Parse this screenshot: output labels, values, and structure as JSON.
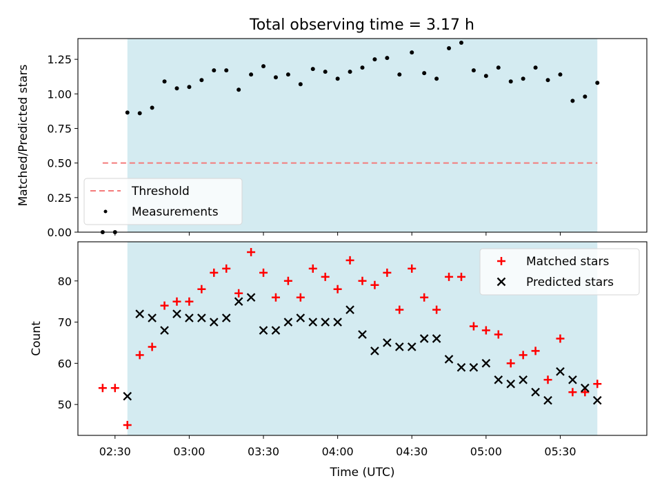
{
  "title": "Total observing time = 3.17 h",
  "colors": {
    "shade": "#d4ebf1",
    "threshold": "#f47a7a",
    "measurement": "#000000",
    "matched": "#ff0000",
    "predicted": "#000000"
  },
  "chart_data": [
    {
      "type": "scatter",
      "ylabel": "Matched/Predicted stars",
      "xlim": [
        "02:15",
        "06:05"
      ],
      "ylim": [
        0,
        1.4
      ],
      "y_ticks": [
        0.0,
        0.25,
        0.5,
        0.75,
        1.0,
        1.25
      ],
      "y_tick_labels": [
        "0.00",
        "0.25",
        "0.50",
        "0.75",
        "1.00",
        "1.25"
      ],
      "shaded_interval": [
        "02:35",
        "05:45"
      ],
      "legend": {
        "position": "lower-left",
        "items": [
          "Threshold",
          "Measurements"
        ]
      },
      "threshold": {
        "name": "Threshold",
        "y": 0.5,
        "x": [
          "02:25",
          "05:45"
        ],
        "style": "dashed"
      },
      "series": [
        {
          "name": "Measurements",
          "x": [
            "02:25",
            "02:30",
            "02:35",
            "02:40",
            "02:45",
            "02:50",
            "02:55",
            "03:00",
            "03:05",
            "03:10",
            "03:15",
            "03:20",
            "03:25",
            "03:30",
            "03:35",
            "03:40",
            "03:45",
            "03:50",
            "03:55",
            "04:00",
            "04:05",
            "04:10",
            "04:15",
            "04:20",
            "04:25",
            "04:30",
            "04:35",
            "04:40",
            "04:45",
            "04:50",
            "04:55",
            "05:00",
            "05:05",
            "05:10",
            "05:15",
            "05:20",
            "05:25",
            "05:30",
            "05:35",
            "05:40",
            "05:45"
          ],
          "y": [
            0.0,
            0.0,
            0.865,
            0.86,
            0.9,
            1.09,
            1.04,
            1.05,
            1.1,
            1.17,
            1.17,
            1.03,
            1.14,
            1.2,
            1.12,
            1.14,
            1.07,
            1.18,
            1.16,
            1.11,
            1.16,
            1.19,
            1.25,
            1.26,
            1.14,
            1.3,
            1.15,
            1.11,
            1.33,
            1.37,
            1.17,
            1.13,
            1.19,
            1.09,
            1.11,
            1.19,
            1.1,
            1.14,
            0.95,
            0.98,
            1.08
          ]
        }
      ]
    },
    {
      "type": "scatter",
      "xlabel": "Time (UTC)",
      "ylabel": "Count",
      "xlim": [
        "02:15",
        "06:05"
      ],
      "ylim": [
        42.5,
        89.5
      ],
      "y_ticks": [
        50,
        60,
        70,
        80
      ],
      "y_tick_labels": [
        "50",
        "60",
        "70",
        "80"
      ],
      "x_ticks": [
        "02:30",
        "03:00",
        "03:30",
        "04:00",
        "04:30",
        "05:00",
        "05:30"
      ],
      "x_tick_labels": [
        "02:30",
        "03:00",
        "03:30",
        "04:00",
        "04:30",
        "05:00",
        "05:30"
      ],
      "shaded_interval": [
        "02:35",
        "05:45"
      ],
      "legend": {
        "position": "top-right",
        "items": [
          "Matched stars",
          "Predicted stars"
        ]
      },
      "series": [
        {
          "name": "Matched stars",
          "marker": "+",
          "x": [
            "02:25",
            "02:30",
            "02:35",
            "02:40",
            "02:45",
            "02:50",
            "02:55",
            "03:00",
            "03:05",
            "03:10",
            "03:15",
            "03:20",
            "03:25",
            "03:30",
            "03:35",
            "03:40",
            "03:45",
            "03:50",
            "03:55",
            "04:00",
            "04:05",
            "04:10",
            "04:15",
            "04:20",
            "04:25",
            "04:30",
            "04:35",
            "04:40",
            "04:45",
            "04:50",
            "04:55",
            "05:00",
            "05:05",
            "05:10",
            "05:15",
            "05:20",
            "05:25",
            "05:30",
            "05:35",
            "05:40",
            "05:45"
          ],
          "y": [
            54,
            54,
            45,
            62,
            64,
            74,
            75,
            75,
            78,
            82,
            83,
            77,
            87,
            82,
            76,
            80,
            76,
            83,
            81,
            78,
            85,
            80,
            79,
            82,
            73,
            83,
            76,
            73,
            81,
            81,
            69,
            68,
            67,
            60,
            62,
            63,
            56,
            66,
            53,
            53,
            55
          ]
        },
        {
          "name": "Predicted stars",
          "marker": "x",
          "x": [
            "02:35",
            "02:40",
            "02:45",
            "02:50",
            "02:55",
            "03:00",
            "03:05",
            "03:10",
            "03:15",
            "03:20",
            "03:25",
            "03:30",
            "03:35",
            "03:40",
            "03:45",
            "03:50",
            "03:55",
            "04:00",
            "04:05",
            "04:10",
            "04:15",
            "04:20",
            "04:25",
            "04:30",
            "04:35",
            "04:40",
            "04:45",
            "04:50",
            "04:55",
            "05:00",
            "05:05",
            "05:10",
            "05:15",
            "05:20",
            "05:25",
            "05:30",
            "05:35",
            "05:40",
            "05:45"
          ],
          "y": [
            52,
            72,
            71,
            68,
            72,
            71,
            71,
            70,
            71,
            75,
            76,
            68,
            68,
            70,
            71,
            70,
            70,
            70,
            73,
            67,
            63,
            65,
            64,
            64,
            66,
            66,
            61,
            59,
            59,
            60,
            56,
            55,
            56,
            53,
            51,
            58,
            56,
            54,
            51
          ]
        }
      ]
    }
  ]
}
